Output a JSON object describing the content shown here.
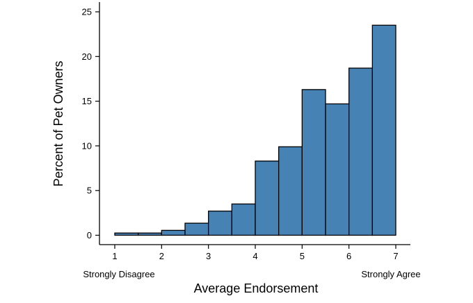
{
  "chart_data": {
    "type": "bar",
    "subtype": "histogram",
    "xlabel": "Average Endorsement",
    "ylabel": "Percent of Pet Owners",
    "xlim": [
      1,
      7
    ],
    "ylim": [
      0,
      25
    ],
    "xticks": [
      "1",
      "2",
      "3",
      "4",
      "5",
      "6",
      "7"
    ],
    "yticks": [
      "0",
      "5",
      "10",
      "15",
      "20",
      "25"
    ],
    "bin_width": 0.5,
    "bins": [
      {
        "start": 1.0,
        "end": 1.5,
        "value": 0.25
      },
      {
        "start": 1.5,
        "end": 2.0,
        "value": 0.25
      },
      {
        "start": 2.0,
        "end": 2.5,
        "value": 0.55
      },
      {
        "start": 2.5,
        "end": 3.0,
        "value": 1.35
      },
      {
        "start": 3.0,
        "end": 3.5,
        "value": 2.7
      },
      {
        "start": 3.5,
        "end": 4.0,
        "value": 3.5
      },
      {
        "start": 4.0,
        "end": 4.5,
        "value": 8.3
      },
      {
        "start": 4.5,
        "end": 5.0,
        "value": 9.9
      },
      {
        "start": 5.0,
        "end": 5.5,
        "value": 16.3
      },
      {
        "start": 5.5,
        "end": 6.0,
        "value": 14.7
      },
      {
        "start": 6.0,
        "end": 6.5,
        "value": 18.7
      },
      {
        "start": 6.5,
        "end": 7.0,
        "value": 23.5
      }
    ],
    "anchor_labels": {
      "low": "Strongly Disagree",
      "high": "Strongly Agree"
    },
    "bar_color": "#4682B4",
    "bar_edge_color": "#000000",
    "grid": false,
    "legend": "none"
  }
}
